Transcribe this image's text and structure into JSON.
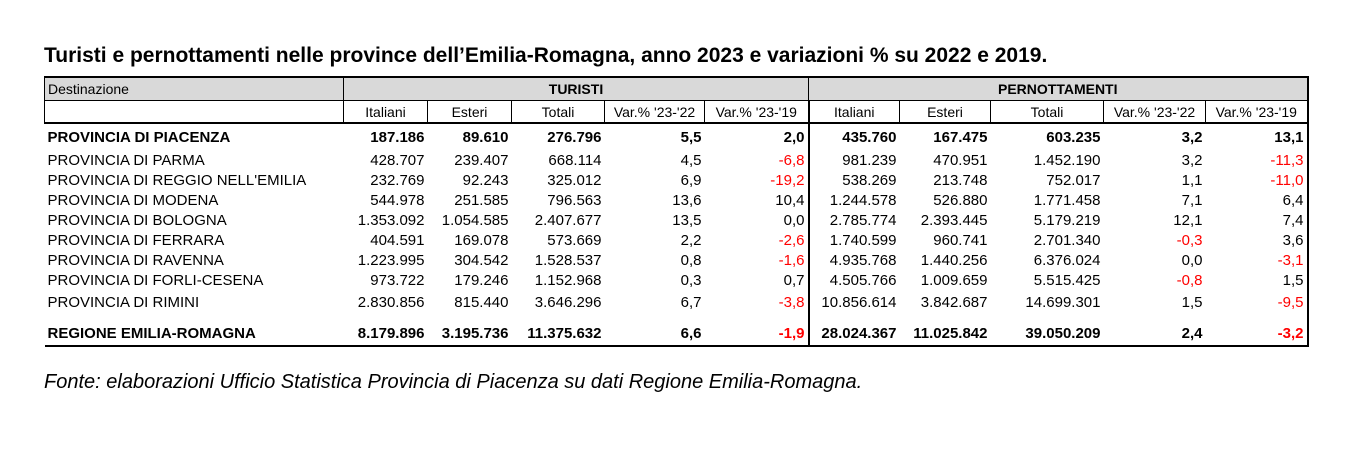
{
  "title": "Turisti e pernottamenti nelle province dell’Emilia-Romagna, anno 2023 e variazioni % su 2022 e 2019.",
  "table": {
    "dest_header": "Destinazione",
    "group_turisti": "TURISTI",
    "group_pernottamenti": "PERNOTTAMENTI",
    "columns": [
      "Italiani",
      "Esteri",
      "Totali",
      "Var.% '23-'22",
      "Var.% '23-'19",
      "Italiani",
      "Esteri",
      "Totali",
      "Var.% '23-'22",
      "Var.% '23-'19"
    ],
    "rows": [
      {
        "name": "PROVINCIA DI PIACENZA",
        "bold": true,
        "v": [
          "187.186",
          "89.610",
          "276.796",
          "5,5",
          "2,0",
          "435.760",
          "167.475",
          "603.235",
          "3,2",
          "13,1"
        ]
      },
      {
        "name": "PROVINCIA DI PARMA",
        "bold": false,
        "v": [
          "428.707",
          "239.407",
          "668.114",
          "4,5",
          "-6,8",
          "981.239",
          "470.951",
          "1.452.190",
          "3,2",
          "-11,3"
        ]
      },
      {
        "name": "PROVINCIA DI REGGIO NELL'EMILIA",
        "bold": false,
        "v": [
          "232.769",
          "92.243",
          "325.012",
          "6,9",
          "-19,2",
          "538.269",
          "213.748",
          "752.017",
          "1,1",
          "-11,0"
        ]
      },
      {
        "name": "PROVINCIA DI MODENA",
        "bold": false,
        "v": [
          "544.978",
          "251.585",
          "796.563",
          "13,6",
          "10,4",
          "1.244.578",
          "526.880",
          "1.771.458",
          "7,1",
          "6,4"
        ]
      },
      {
        "name": "PROVINCIA DI BOLOGNA",
        "bold": false,
        "v": [
          "1.353.092",
          "1.054.585",
          "2.407.677",
          "13,5",
          "0,0",
          "2.785.774",
          "2.393.445",
          "5.179.219",
          "12,1",
          "7,4"
        ]
      },
      {
        "name": "PROVINCIA DI FERRARA",
        "bold": false,
        "v": [
          "404.591",
          "169.078",
          "573.669",
          "2,2",
          "-2,6",
          "1.740.599",
          "960.741",
          "2.701.340",
          "-0,3",
          "3,6"
        ]
      },
      {
        "name": "PROVINCIA DI RAVENNA",
        "bold": false,
        "v": [
          "1.223.995",
          "304.542",
          "1.528.537",
          "0,8",
          "-1,6",
          "4.935.768",
          "1.440.256",
          "6.376.024",
          "0,0",
          "-3,1"
        ]
      },
      {
        "name": "PROVINCIA DI FORLI-CESENA",
        "bold": false,
        "v": [
          "973.722",
          "179.246",
          "1.152.968",
          "0,3",
          "0,7",
          "4.505.766",
          "1.009.659",
          "5.515.425",
          "-0,8",
          "1,5"
        ]
      },
      {
        "name": "PROVINCIA DI RIMINI",
        "bold": false,
        "v": [
          "2.830.856",
          "815.440",
          "3.646.296",
          "6,7",
          "-3,8",
          "10.856.614",
          "3.842.687",
          "14.699.301",
          "1,5",
          "-9,5"
        ]
      },
      {
        "name": "REGIONE EMILIA-ROMAGNA",
        "bold": true,
        "v": [
          "8.179.896",
          "3.195.736",
          "11.375.632",
          "6,6",
          "-1,9",
          "28.024.367",
          "11.025.842",
          "39.050.209",
          "2,4",
          "-3,2"
        ]
      }
    ]
  },
  "source": "Fonte: elaborazioni Ufficio Statistica Provincia di Piacenza su dati Regione Emilia-Romagna.",
  "colors": {
    "negative": "#ff0000",
    "header_bg": "#d9d9d9"
  }
}
